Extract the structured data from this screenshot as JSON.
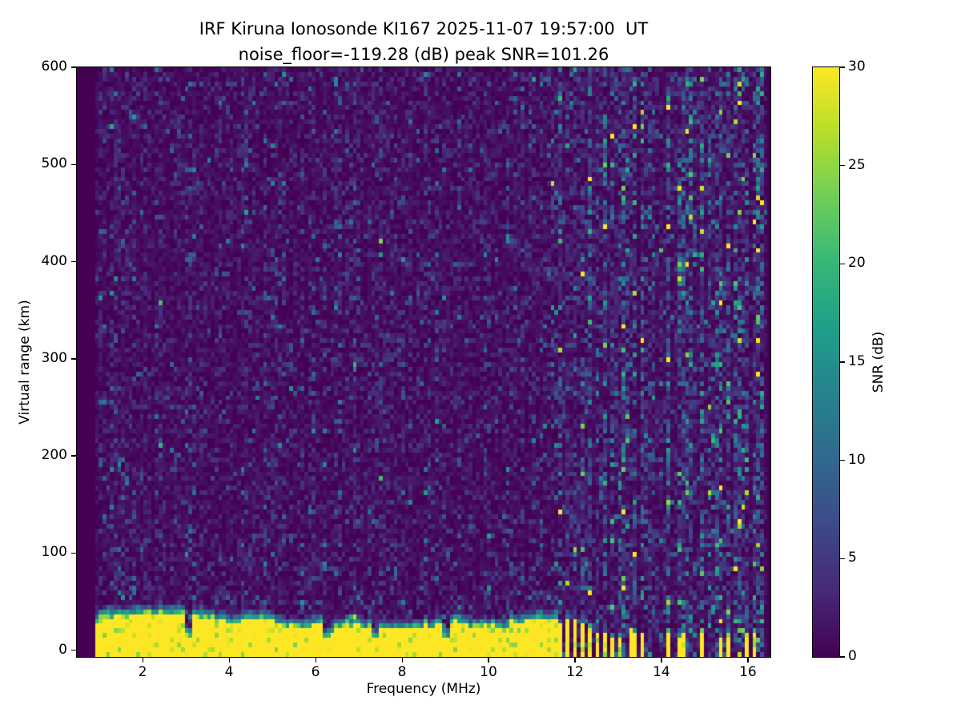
{
  "chart_data": {
    "type": "heatmap",
    "title": "IRF Kiruna Ionosonde KI167 2025-11-07 19:57:00  UT",
    "subtitle": "noise_floor=-119.28 (dB) peak SNR=101.26",
    "xlabel": "Frequency (MHz)",
    "ylabel": "Virtual range (km)",
    "xlim": [
      0.48,
      16.52
    ],
    "ylim": [
      -7,
      600
    ],
    "x_ticks": [
      2,
      4,
      6,
      8,
      10,
      12,
      14,
      16
    ],
    "y_ticks": [
      0,
      100,
      200,
      300,
      400,
      500,
      600
    ],
    "colorbar": {
      "label": "SNR (dB)",
      "ticks": [
        0,
        5,
        10,
        15,
        20,
        25,
        30
      ],
      "min": 0,
      "max": 30
    },
    "colormap": {
      "name": "viridis",
      "stops": [
        "#440154",
        "#482878",
        "#3e4989",
        "#31688e",
        "#26828e",
        "#1f9e89",
        "#35b779",
        "#6ece58",
        "#b5de2b",
        "#fde725"
      ]
    },
    "data_freq_range": [
      0.9,
      16.45
    ],
    "grid": {
      "n_freq": 180,
      "n_range": 124
    },
    "background_noise": {
      "mean_db": 1.6,
      "bright_speckle_prob": 0.035,
      "bright_speckle_db": 10,
      "low_range_speckle_prob": 0.1
    },
    "ground_echo": {
      "freq_start": 0.9,
      "freq_end": 11.62,
      "snr_db": 30,
      "top_km_min": 20,
      "top_km_max": 38,
      "transition_km": 12,
      "notch_freqs_mhz": [
        3.05,
        6.3,
        7.35,
        9.0
      ]
    },
    "comb_region": {
      "freq_start": 11.62,
      "freq_end": 13.05,
      "stripe_height_km_start": 30,
      "stripe_height_km_end": 14
    },
    "sparse_stripe_freqs_mhz": [
      13.35,
      13.55,
      14.15,
      14.45,
      14.95,
      15.35,
      15.55,
      15.95,
      16.15
    ],
    "extra_interference_freqs_mhz": [
      13.15,
      13.75,
      14.65,
      15.15,
      15.75,
      16.3
    ],
    "sparse_stripe_height_km": 16,
    "interference_noise_boost": 2.6,
    "seed": 20251107
  }
}
